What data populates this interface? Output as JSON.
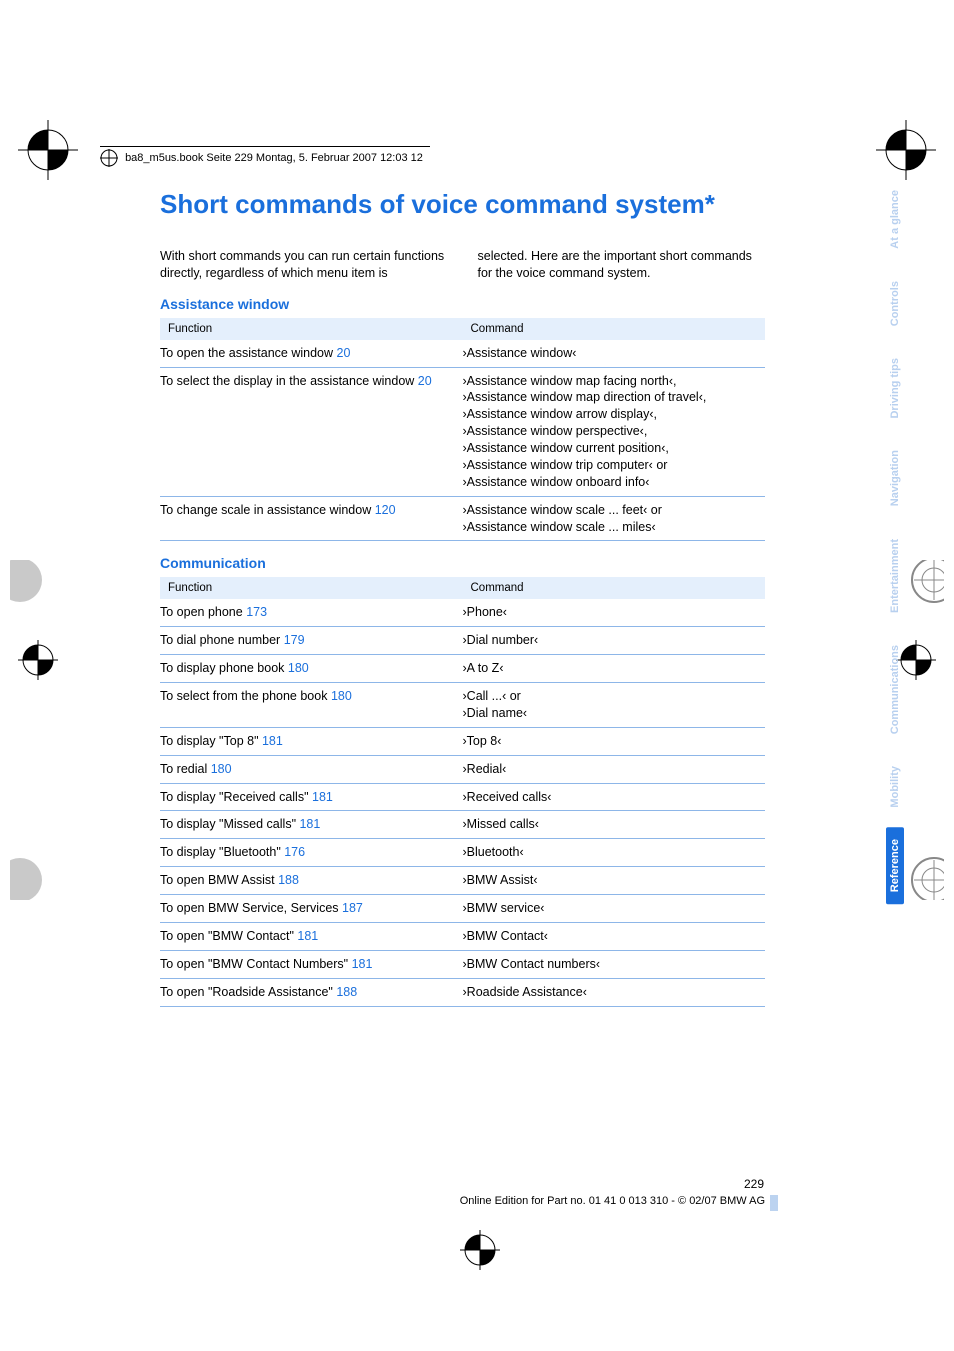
{
  "print": {
    "header_text": "ba8_m5us.book  Seite 229  Montag, 5. Februar 2007  12:03 12"
  },
  "title": "Short commands of voice command system*",
  "intro": {
    "left": "With short commands you can run certain functions directly, regardless of which menu item is",
    "right": "selected. Here are the important short commands for the voice command system."
  },
  "sections": [
    {
      "heading": "Assistance window",
      "header_func": "Function",
      "header_cmd": "Command",
      "rows": [
        {
          "func": "To open the assistance window",
          "page": "20",
          "cmd": "›Assistance window‹"
        },
        {
          "func": "To select the display in the assistance window",
          "page": "20",
          "cmd": "›Assistance window map facing north‹,\n›Assistance window map direction of travel‹,\n›Assistance window arrow display‹,\n›Assistance window perspective‹,\n›Assistance window current position‹,\n›Assistance window trip computer‹ or\n›Assistance window onboard info‹"
        },
        {
          "func": "To change scale in assistance window",
          "page": "120",
          "cmd": "›Assistance window scale ... feet‹ or\n›Assistance window scale ... miles‹"
        }
      ]
    },
    {
      "heading": "Communication",
      "header_func": "Function",
      "header_cmd": "Command",
      "rows": [
        {
          "func": "To open phone",
          "page": "173",
          "cmd": "›Phone‹"
        },
        {
          "func": "To dial phone number",
          "page": "179",
          "cmd": "›Dial number‹"
        },
        {
          "func": "To display phone book",
          "page": "180",
          "cmd": "›A to Z‹"
        },
        {
          "func": "To select from the phone book",
          "page": "180",
          "cmd": "›Call ...‹ or\n›Dial name‹"
        },
        {
          "func": "To display \"Top 8\"",
          "page": "181",
          "cmd": "›Top 8‹"
        },
        {
          "func": "To redial",
          "page": "180",
          "cmd": "›Redial‹"
        },
        {
          "func": "To display \"Received calls\"",
          "page": "181",
          "cmd": "›Received calls‹"
        },
        {
          "func": "To display \"Missed calls\"",
          "page": "181",
          "cmd": "›Missed calls‹"
        },
        {
          "func": "To display \"Bluetooth\"",
          "page": "176",
          "cmd": "›Bluetooth‹"
        },
        {
          "func": "To open BMW Assist",
          "page": "188",
          "cmd": "›BMW Assist‹"
        },
        {
          "func": "To open BMW Service, Services",
          "page": "187",
          "cmd": "›BMW service‹"
        },
        {
          "func": "To open \"BMW Contact\"",
          "page": "181",
          "cmd": "›BMW Contact‹"
        },
        {
          "func": "To open \"BMW Contact Numbers\"",
          "page": "181",
          "cmd": "›BMW Contact numbers‹"
        },
        {
          "func": "To open \"Roadside Assistance\"",
          "page": "188",
          "cmd": "›Roadside Assistance‹"
        }
      ]
    }
  ],
  "side_tabs": [
    {
      "label": "At a glance",
      "type": "faded"
    },
    {
      "label": "Controls",
      "type": "faded"
    },
    {
      "label": "Driving tips",
      "type": "faded"
    },
    {
      "label": "Navigation",
      "type": "faded"
    },
    {
      "label": "Entertainment",
      "type": "faded"
    },
    {
      "label": "Communications",
      "type": "faded"
    },
    {
      "label": "Mobility",
      "type": "mobility"
    },
    {
      "label": "Reference",
      "type": "active"
    }
  ],
  "footer": {
    "page_number": "229",
    "edition": "Online Edition for Part no. 01 41 0 013 310 - © 02/07 BMW AG"
  },
  "colors": {
    "accent": "#1a6fdc",
    "header_bg": "#e4effc",
    "row_border": "#8db6e8",
    "tab_faded": "#b8d0ef",
    "footer_bar": "#bcd3f0"
  }
}
